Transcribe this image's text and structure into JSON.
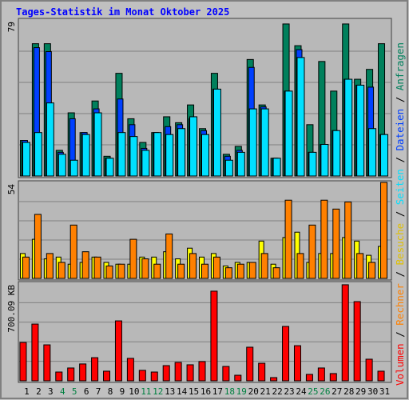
{
  "chart_data": {
    "type": "bar",
    "title": "Tages-Statistik im Monat Oktober 2025",
    "categories": [
      "1",
      "2",
      "3",
      "4",
      "5",
      "6",
      "7",
      "8",
      "9",
      "10",
      "11",
      "12",
      "13",
      "14",
      "15",
      "16",
      "17",
      "18",
      "19",
      "20",
      "21",
      "22",
      "23",
      "24",
      "25",
      "26",
      "27",
      "28",
      "29",
      "30",
      "31"
    ],
    "category_colors": [
      "#000000",
      "#000000",
      "#000000",
      "#008040",
      "#008040",
      "#000000",
      "#000000",
      "#000000",
      "#000000",
      "#000000",
      "#008040",
      "#008040",
      "#000000",
      "#000000",
      "#000000",
      "#000000",
      "#000000",
      "#008040",
      "#008040",
      "#000000",
      "#000000",
      "#000000",
      "#000000",
      "#000000",
      "#008040",
      "#008040",
      "#000000",
      "#000000",
      "#000000",
      "#000000",
      "#000000"
    ],
    "legend_separator": " / ",
    "panels": [
      {
        "ylim": [
          0,
          79
        ],
        "yticks": [
          79
        ],
        "series": [
          {
            "name": "Anfragen",
            "color": "#00805c",
            "values": [
              18,
              67,
              67,
              13,
              32,
              22,
              38,
              10,
              52,
              29,
              17,
              22,
              30,
              27,
              36,
              24,
              52,
              11,
              15,
              59,
              36,
              9,
              77,
              66,
              26,
              58,
              43,
              77,
              49,
              54,
              67
            ]
          },
          {
            "name": "Dateien",
            "color": "#0040ff",
            "values": [
              18,
              65,
              63,
              12,
              29,
              22,
              34,
              9,
              39,
              26,
              14,
              22,
              25,
              26,
              29,
              23,
              44,
              10,
              13,
              55,
              35,
              9,
              43,
              64,
              12,
              16,
              23,
              49,
              46,
              45,
              21
            ]
          },
          {
            "name": "Seiten",
            "color": "#00e0ff",
            "values": [
              17,
              22,
              37,
              11,
              8,
              21,
              32,
              9,
              22,
              20,
              13,
              22,
              21,
              24,
              30,
              21,
              44,
              8,
              12,
              34,
              34,
              9,
              43,
              60,
              12,
              16,
              23,
              49,
              46,
              24,
              21
            ]
          }
        ]
      },
      {
        "ylim": [
          0,
          54
        ],
        "yticks": [
          54
        ],
        "series": [
          {
            "name": "Besuche",
            "color": "#ffff00",
            "values": [
              14,
              22,
              11,
              12,
              8,
              9,
              12,
              9,
              8,
              8,
              12,
              12,
              15,
              11,
              17,
              12,
              14,
              7,
              9,
              9,
              21,
              8,
              23,
              26,
              9,
              14,
              14,
              23,
              21,
              13,
              18
            ]
          },
          {
            "name": "Rechner",
            "color": "#ff8000",
            "values": [
              12,
              36,
              14,
              9,
              30,
              15,
              12,
              7,
              8,
              22,
              11,
              8,
              25,
              8,
              14,
              8,
              12,
              6,
              8,
              9,
              14,
              6,
              44,
              14,
              30,
              44,
              39,
              43,
              14,
              9,
              54
            ]
          }
        ]
      },
      {
        "ylim": [
          0,
          700.09
        ],
        "yticks": [
          {
            "value": 700.09,
            "label": "700.09 KB"
          }
        ],
        "series": [
          {
            "name": "Volumen",
            "color": "#ff0000",
            "values": [
              275,
              407,
              258,
              63,
              92,
              121,
              166,
              69,
              430,
              161,
              75,
              63,
              109,
              132,
              115,
              138,
              643,
              103,
              40,
              241,
              126,
              23,
              390,
              252,
              46,
              92,
              52,
              689,
              568,
              155,
              69
            ]
          }
        ]
      }
    ]
  }
}
